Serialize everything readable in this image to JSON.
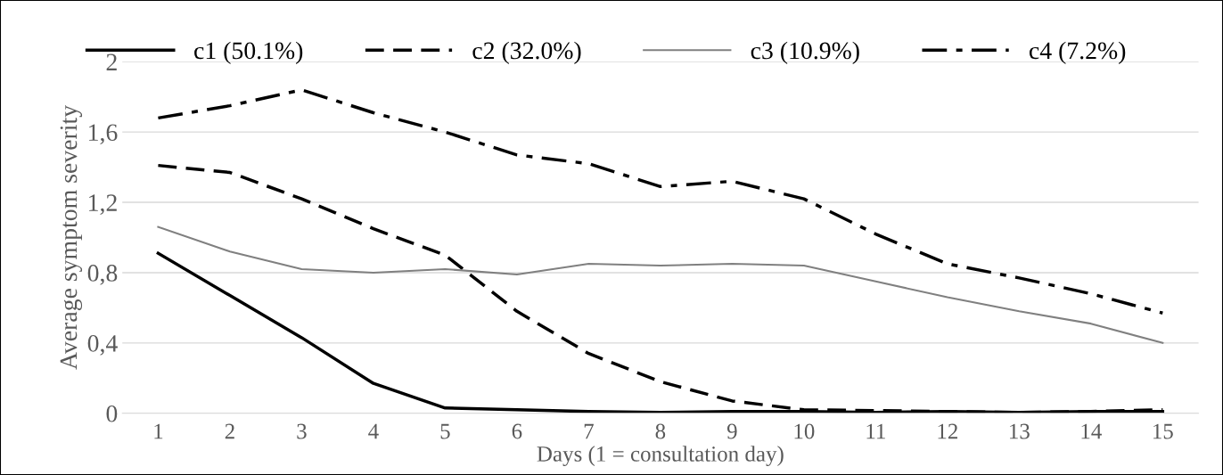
{
  "chart_data": {
    "type": "line",
    "xlabel": "Days (1 = consultation day)",
    "ylabel": "Average symptom severity",
    "categories": [
      "1",
      "2",
      "3",
      "4",
      "5",
      "6",
      "7",
      "8",
      "9",
      "10",
      "11",
      "12",
      "13",
      "14",
      "15"
    ],
    "series": [
      {
        "name": "c1 (50.1%)",
        "color": "#000000",
        "line_style": "solid",
        "values": [
          0.91,
          0.67,
          0.43,
          0.17,
          0.03,
          0.02,
          0.01,
          0.005,
          0.01,
          0.01,
          0.005,
          0.01,
          0.005,
          0.01,
          0.01
        ]
      },
      {
        "name": "c2 (32.0%)",
        "color": "#000000",
        "line_style": "dashed",
        "values": [
          1.41,
          1.37,
          1.22,
          1.05,
          0.9,
          0.58,
          0.34,
          0.18,
          0.07,
          0.02,
          0.015,
          0.01,
          0.005,
          0.01,
          0.02
        ]
      },
      {
        "name": "c3 (10.9%)",
        "color": "#808080",
        "line_style": "solid",
        "values": [
          1.06,
          0.92,
          0.82,
          0.8,
          0.82,
          0.79,
          0.85,
          0.84,
          0.85,
          0.84,
          0.75,
          0.66,
          0.58,
          0.51,
          0.4
        ]
      },
      {
        "name": "c4 (7.2%)",
        "color": "#000000",
        "line_style": "dashdot",
        "values": [
          1.68,
          1.75,
          1.84,
          1.71,
          1.6,
          1.47,
          1.42,
          1.29,
          1.32,
          1.22,
          1.02,
          0.85,
          0.77,
          0.68,
          0.57
        ]
      }
    ],
    "ylim": [
      0,
      2
    ],
    "yticks": [
      {
        "value": 0,
        "label": "0"
      },
      {
        "value": 0.4,
        "label": "0,4"
      },
      {
        "value": 0.8,
        "label": "0,8"
      },
      {
        "value": 1.2,
        "label": "1,2"
      },
      {
        "value": 1.6,
        "label": "1,6"
      },
      {
        "value": 2,
        "label": "2"
      }
    ],
    "grid": "y",
    "legend": "top",
    "marker": "none"
  }
}
